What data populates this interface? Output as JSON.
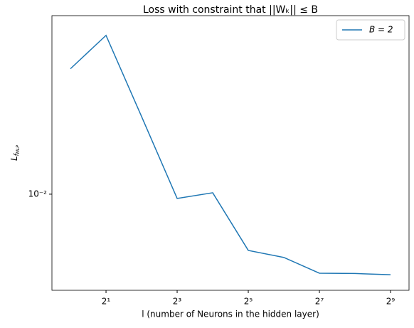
{
  "chart_data": {
    "type": "line",
    "title": "Loss with constraint that ||Wₖ|| ≤ B",
    "xlabel": "l (number of Neurons in the hidden layer)",
    "ylabel": {
      "main": "L",
      "sub": "f",
      "subsub": "MLP"
    },
    "x": [
      1,
      2,
      4,
      8,
      16,
      32,
      64,
      128,
      256,
      512
    ],
    "series": [
      {
        "name": "B = 2",
        "color": "#1f77b4",
        "values": [
          0.01866,
          0.02203,
          0.01471,
          0.00979,
          0.01007,
          0.00756,
          0.0073,
          0.00675,
          0.00674,
          0.0067
        ]
      }
    ],
    "xscale": "log2",
    "yscale": "log",
    "xlim": [
      0.697,
      734
    ],
    "ylim": [
      0.0062,
      0.0243
    ],
    "xticks": [
      {
        "value": 2,
        "label": "2¹"
      },
      {
        "value": 8,
        "label": "2³"
      },
      {
        "value": 32,
        "label": "2⁵"
      },
      {
        "value": 128,
        "label": "2⁷"
      },
      {
        "value": 512,
        "label": "2⁹"
      }
    ],
    "yticks": [
      {
        "value": 0.01,
        "label": "10⁻²"
      }
    ],
    "legend": "upper right",
    "grid": false
  }
}
